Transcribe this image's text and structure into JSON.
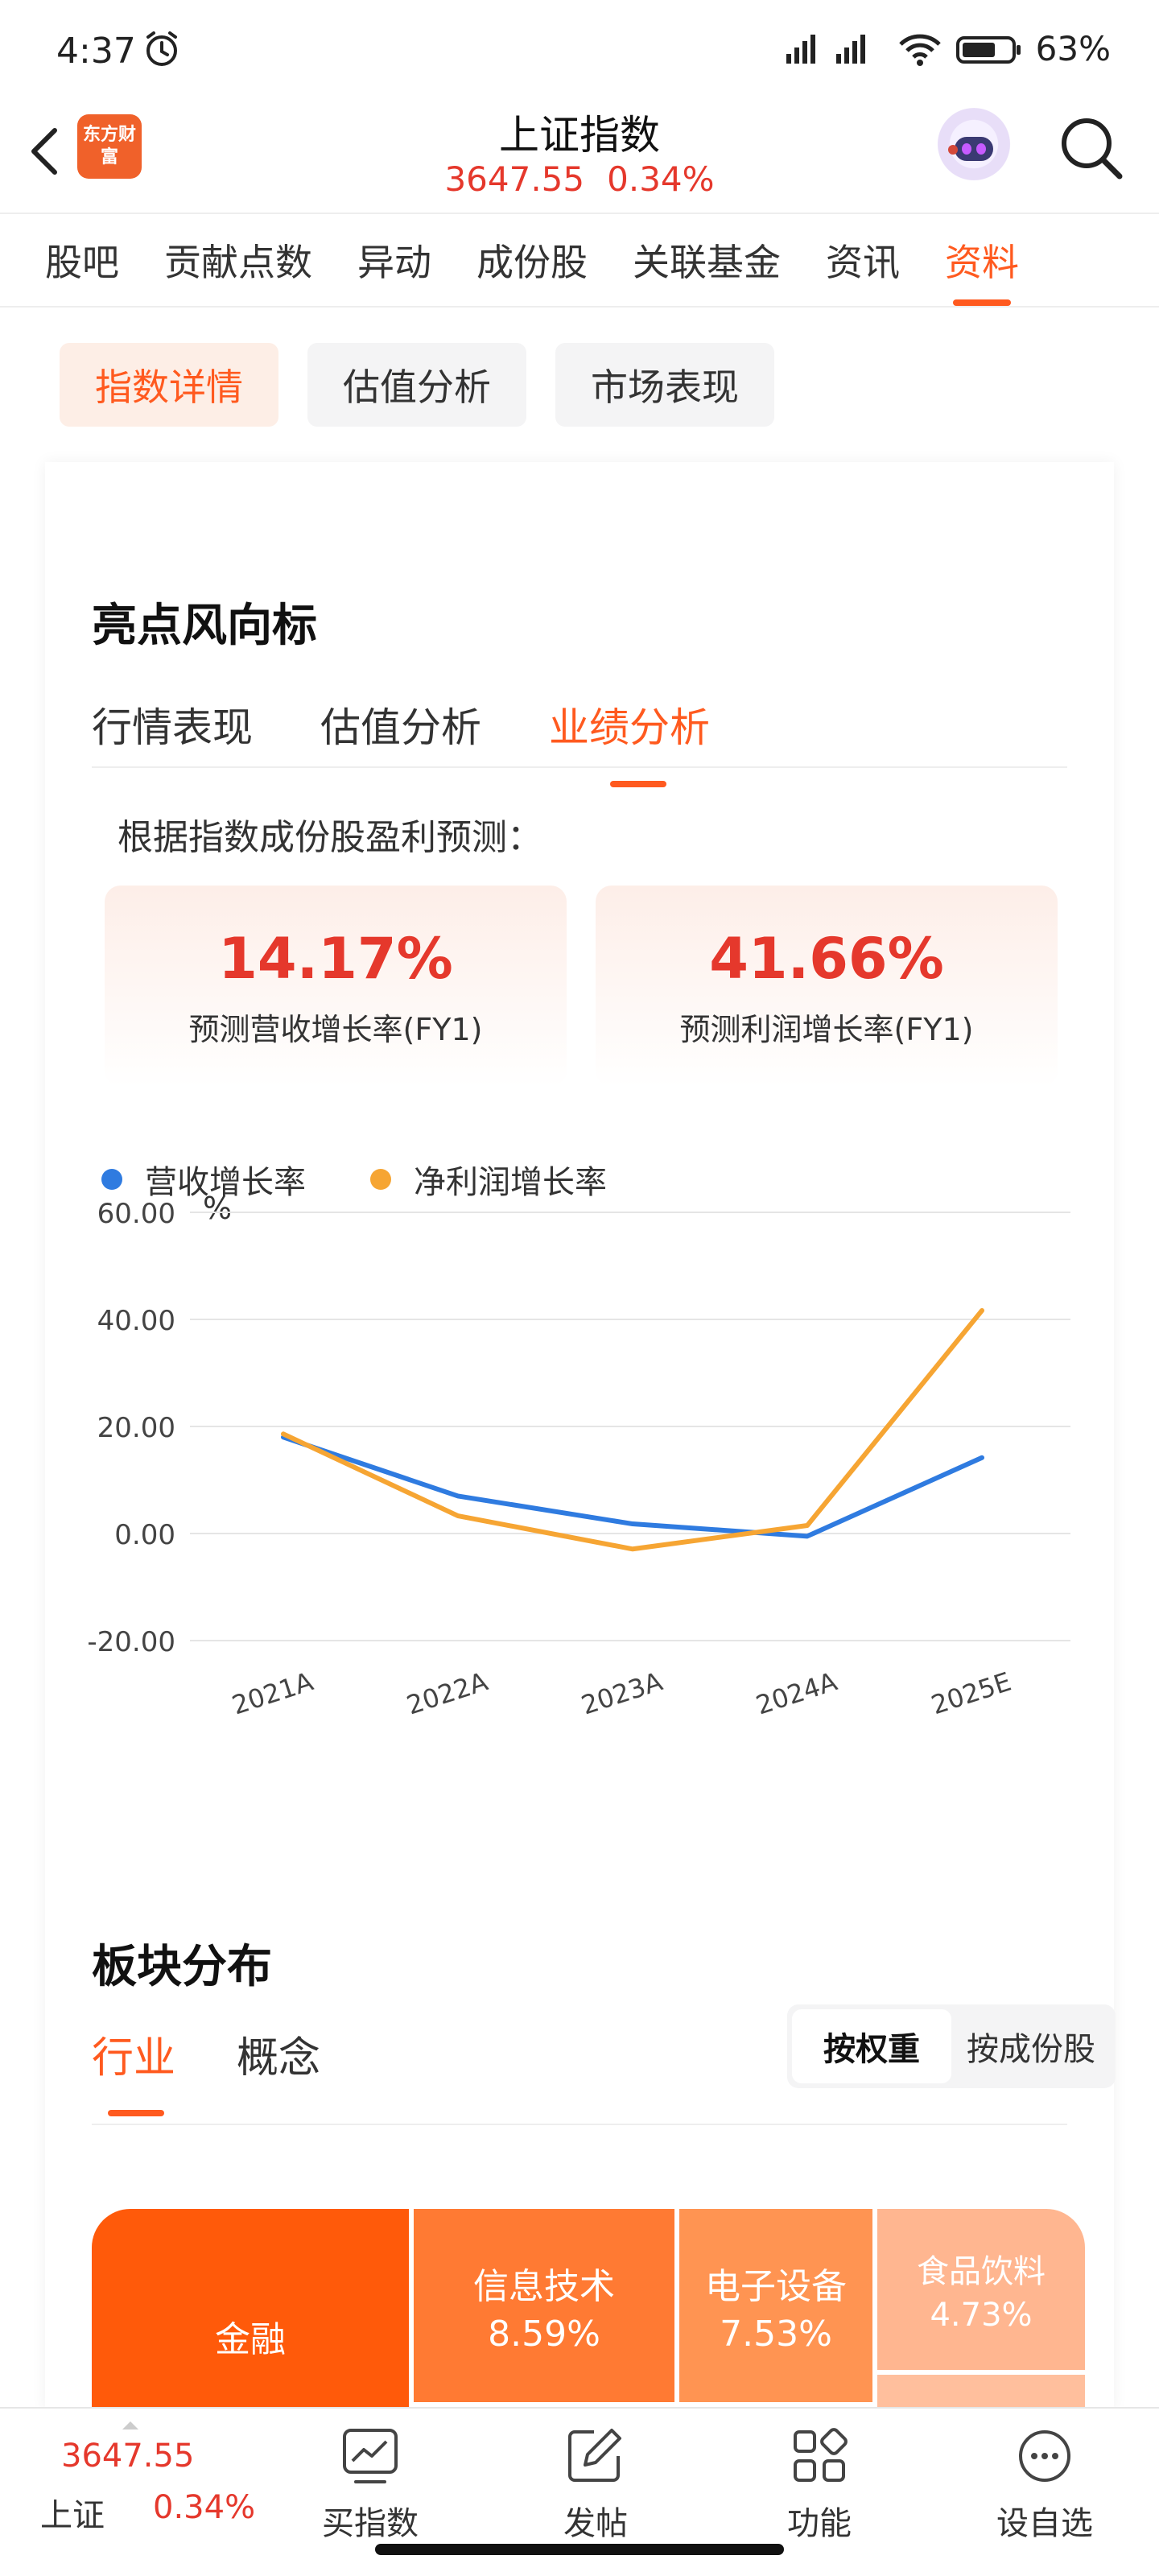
{
  "status": {
    "time": "4:37",
    "battery": "63%"
  },
  "header": {
    "logo": "东方财富",
    "title": "上证指数",
    "price": "3647.55",
    "change": "0.34%"
  },
  "tabs": [
    {
      "label": "股吧"
    },
    {
      "label": "贡献点数"
    },
    {
      "label": "异动"
    },
    {
      "label": "成份股"
    },
    {
      "label": "关联基金"
    },
    {
      "label": "资讯"
    },
    {
      "label": "资料",
      "active": true
    }
  ],
  "subtabs": [
    {
      "label": "指数详情",
      "active": true
    },
    {
      "label": "估值分析"
    },
    {
      "label": "市场表现"
    }
  ],
  "highlights": {
    "title": "亮点风向标",
    "tabs": [
      {
        "label": "行情表现"
      },
      {
        "label": "估值分析"
      },
      {
        "label": "业绩分析",
        "active": true
      }
    ],
    "note": "根据指数成份股盈利预测：",
    "kpis": [
      {
        "value": "14.17%",
        "label": "预测营收增长率(FY1)"
      },
      {
        "value": "41.66%",
        "label": "预测利润增长率(FY1)"
      }
    ]
  },
  "chart_data": {
    "type": "line",
    "ylabel": "%",
    "x": [
      "2021A",
      "2022A",
      "2023A",
      "2024A",
      "2025E"
    ],
    "yticks": [
      "60.00",
      "40.00",
      "20.00",
      "0.00",
      "-20.00"
    ],
    "ylim": [
      -20,
      60
    ],
    "grid": true,
    "legend_position": "top-left",
    "series": [
      {
        "name": "营收增长率",
        "color": "#2f7be0",
        "values": [
          18.0,
          7.0,
          1.8,
          -0.5,
          14.17
        ]
      },
      {
        "name": "净利润增长率",
        "color": "#f6a533",
        "values": [
          18.6,
          3.3,
          -2.9,
          1.5,
          41.66
        ]
      }
    ]
  },
  "sectors": {
    "title": "板块分布",
    "tabs": [
      {
        "label": "行业",
        "active": true
      },
      {
        "label": "概念"
      }
    ],
    "toggle": [
      {
        "label": "按权重",
        "active": true
      },
      {
        "label": "按成份股"
      }
    ],
    "treemap": [
      {
        "name": "金融",
        "pct": "",
        "color": "#ff5a0a"
      },
      {
        "name": "信息技术",
        "pct": "8.59%",
        "color": "#ff7a33"
      },
      {
        "name": "电子设备",
        "pct": "7.53%",
        "color": "#ff9452"
      },
      {
        "name": "食品饮料",
        "pct": "4.73%",
        "color": "#ffb690"
      },
      {
        "name": "",
        "pct": "",
        "color": "#ffbf9d"
      }
    ]
  },
  "bottombar": {
    "price": "3647.55",
    "name": "上证",
    "change": "0.34%",
    "items": [
      {
        "label": "买指数"
      },
      {
        "label": "发帖"
      },
      {
        "label": "功能"
      },
      {
        "label": "设自选"
      }
    ]
  }
}
